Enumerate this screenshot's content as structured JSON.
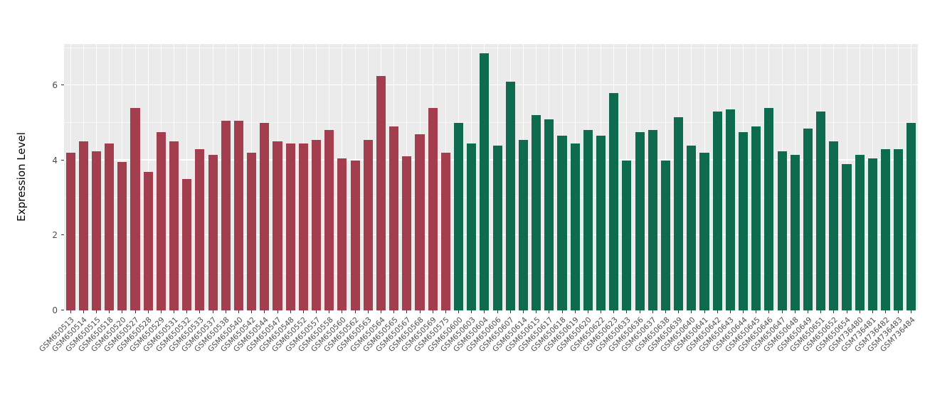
{
  "chart_data": {
    "type": "bar",
    "title": "",
    "xlabel": "",
    "ylabel": "Expression Level",
    "ylim": [
      0,
      7.1
    ],
    "yticks": [
      0,
      2,
      4,
      6
    ],
    "grid": true,
    "legend": "none",
    "panel_background": "#EBEBEB",
    "gridline_color": "#FFFFFF",
    "groups": [
      {
        "name": "group-1",
        "color": "#A23E4E",
        "count": 30
      },
      {
        "name": "group-2",
        "color": "#0E6B4F",
        "count": 36
      }
    ],
    "group_split_index": 30,
    "categories": [
      "GSM650513",
      "GSM650514",
      "GSM650515",
      "GSM650518",
      "GSM650520",
      "GSM650527",
      "GSM650528",
      "GSM650529",
      "GSM650531",
      "GSM650532",
      "GSM650533",
      "GSM650537",
      "GSM650538",
      "GSM650540",
      "GSM650542",
      "GSM650544",
      "GSM650547",
      "GSM650548",
      "GSM650552",
      "GSM650557",
      "GSM650558",
      "GSM650560",
      "GSM650562",
      "GSM650563",
      "GSM650564",
      "GSM650565",
      "GSM650567",
      "GSM650568",
      "GSM650569",
      "GSM650575",
      "GSM650600",
      "GSM650603",
      "GSM650604",
      "GSM650606",
      "GSM650607",
      "GSM650614",
      "GSM650615",
      "GSM650617",
      "GSM650618",
      "GSM650619",
      "GSM650620",
      "GSM650622",
      "GSM650623",
      "GSM650633",
      "GSM650636",
      "GSM650637",
      "GSM650638",
      "GSM650639",
      "GSM650640",
      "GSM650641",
      "GSM650642",
      "GSM650643",
      "GSM650644",
      "GSM650645",
      "GSM650646",
      "GSM650647",
      "GSM650648",
      "GSM650649",
      "GSM650651",
      "GSM650652",
      "GSM650654",
      "GSM736480",
      "GSM736481",
      "GSM736482",
      "GSM736483",
      "GSM736484"
    ],
    "values": [
      4.2,
      4.5,
      4.25,
      4.45,
      3.95,
      5.4,
      3.7,
      4.75,
      4.5,
      3.5,
      4.3,
      4.15,
      5.05,
      5.05,
      4.2,
      5.0,
      4.5,
      4.45,
      4.45,
      4.55,
      4.8,
      4.05,
      4.0,
      4.55,
      6.25,
      4.9,
      4.1,
      4.7,
      5.4,
      4.2,
      5.0,
      4.45,
      6.85,
      4.4,
      6.1,
      4.55,
      5.2,
      5.1,
      4.65,
      4.45,
      4.8,
      4.65,
      5.8,
      4.0,
      4.75,
      4.8,
      4.0,
      5.15,
      4.4,
      4.2,
      5.3,
      5.35,
      4.75,
      4.9,
      5.4,
      4.25,
      4.15,
      4.85,
      5.3,
      4.5,
      3.9,
      4.15,
      4.05,
      4.3,
      4.3,
      5.0
    ]
  }
}
